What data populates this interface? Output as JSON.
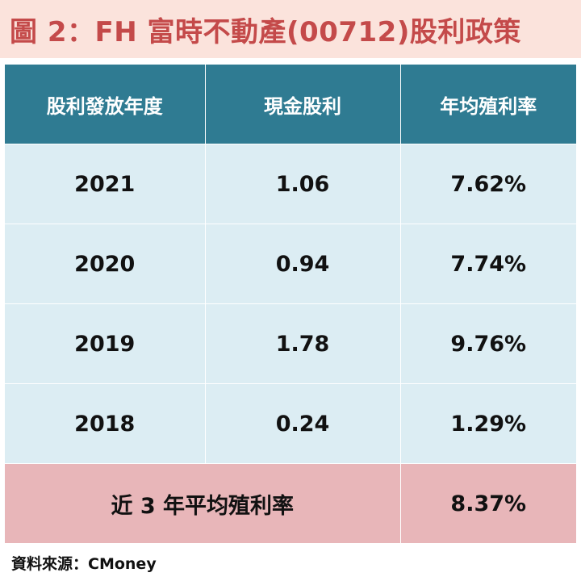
{
  "title": "圖 2：FH 富時不動產(00712)股利政策",
  "table": {
    "headers": [
      "股利發放年度",
      "現金股利",
      "年均殖利率"
    ],
    "rows": [
      {
        "year": "2021",
        "dividend": "1.06",
        "yield": "7.62%"
      },
      {
        "year": "2020",
        "dividend": "0.94",
        "yield": "7.74%"
      },
      {
        "year": "2019",
        "dividend": "1.78",
        "yield": "9.76%"
      },
      {
        "year": "2018",
        "dividend": "0.24",
        "yield": "1.29%"
      }
    ],
    "footer": {
      "label": "近 3 年平均殖利率",
      "value": "8.37%"
    }
  },
  "source": "資料來源：CMoney",
  "colors": {
    "title_text": "#c44a4a",
    "title_bg": "#fbe3dc",
    "header_bg": "#2f7b92",
    "row_bg": "#dcedf3",
    "footer_bg": "#e8b6b9"
  }
}
